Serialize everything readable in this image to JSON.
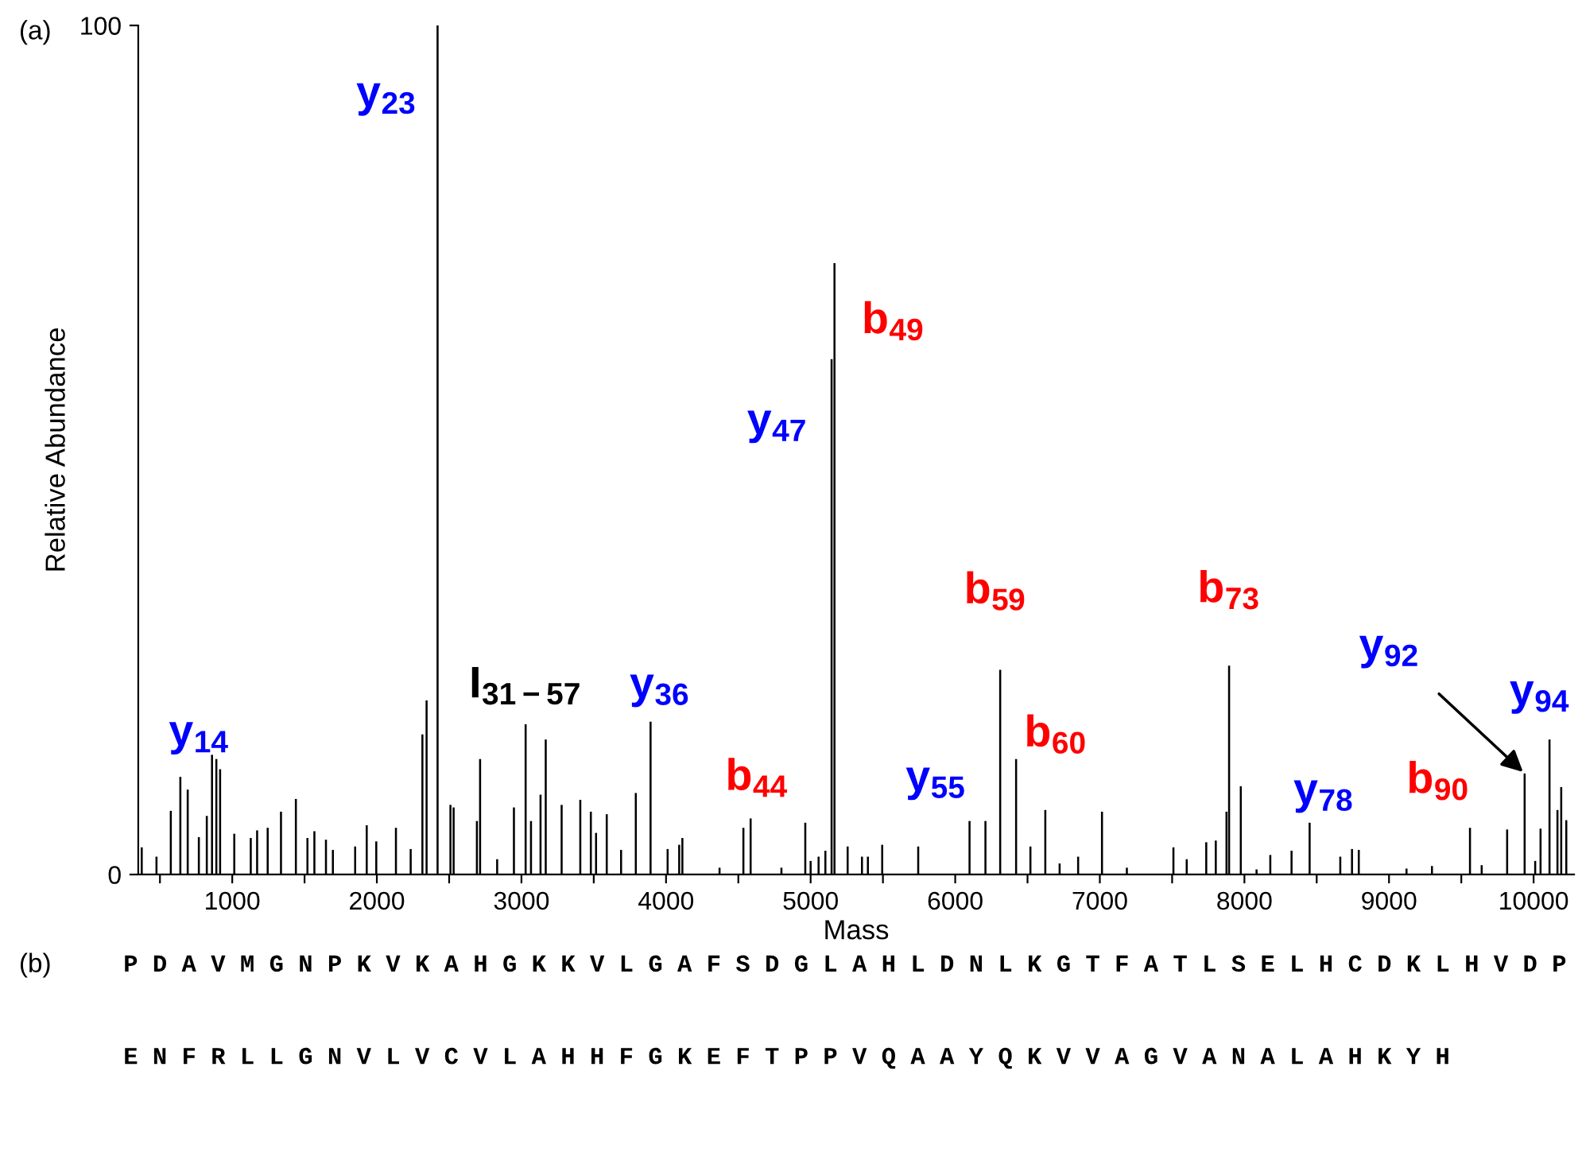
{
  "chart_data": {
    "type": "bar",
    "xlabel": "Mass",
    "ylabel": "Relative Abundance",
    "xlim": [
      350,
      10280
    ],
    "ylim": [
      0,
      100
    ],
    "yticks": [
      0,
      100
    ],
    "xticks": [
      {
        "value": 500,
        "label": null
      },
      1000,
      {
        "value": 1500,
        "label": null
      },
      2000,
      {
        "value": 2500,
        "label": null
      },
      3000,
      {
        "value": 3500,
        "label": null
      },
      4000,
      {
        "value": 4500,
        "label": null
      },
      5000,
      {
        "value": 5500,
        "label": null
      },
      6000,
      {
        "value": 6500,
        "label": null
      },
      7000,
      {
        "value": 7500,
        "label": null
      },
      8000,
      {
        "value": 8500,
        "label": null
      },
      9000,
      {
        "value": 9500,
        "label": null
      },
      10000
    ],
    "grid": false,
    "series": [
      {
        "color": "#000000",
        "x": [
          374,
          476,
          575,
          641,
          692,
          769,
          824,
          860,
          890,
          916,
          1014,
          1128,
          1172,
          1245,
          1337,
          1440,
          1520,
          1568,
          1648,
          1696,
          1850,
          1930,
          1996,
          2132,
          2234,
          2315,
          2344,
          2420,
          2509,
          2531,
          2692,
          2714,
          2832,
          2948,
          3029,
          3066,
          3132,
          3168,
          3278,
          3407,
          3480,
          3516,
          3590,
          3689,
          3791,
          3893,
          4011,
          4091,
          4113,
          4370,
          4535,
          4585,
          4798,
          4963,
          5000,
          5055,
          5102,
          5145,
          5165,
          5256,
          5355,
          5396,
          5495,
          5744,
          6099,
          6209,
          6311,
          6421,
          6520,
          6623,
          6722,
          6850,
          7015,
          7187,
          7509,
          7601,
          7736,
          7802,
          7876,
          7894,
          7975,
          8084,
          8179,
          8326,
          8451,
          8663,
          8744,
          8791,
          9121,
          9297,
          9560,
          9641,
          9817,
          9938,
          10011,
          10048,
          10110,
          10165,
          10191,
          10226
        ],
        "values": [
          3.2,
          2.1,
          7.5,
          11.5,
          10,
          4.4,
          6.9,
          14.1,
          13.6,
          12.4,
          4.8,
          4.3,
          5.2,
          5.5,
          7.4,
          8.9,
          4.3,
          5.1,
          4.1,
          2.9,
          3.3,
          5.8,
          3.9,
          5.5,
          3.0,
          16.5,
          20.5,
          100,
          8.2,
          7.9,
          6.3,
          13.6,
          1.8,
          7.9,
          17.7,
          6.3,
          9.4,
          15.9,
          8.2,
          8.8,
          7.4,
          4.9,
          7.1,
          2.9,
          9.6,
          18.0,
          3.0,
          3.5,
          4.3,
          0.8,
          5.5,
          6.6,
          0.8,
          6.1,
          1.6,
          2.1,
          2.8,
          60.7,
          72.0,
          3.3,
          2.1,
          2.1,
          3.5,
          3.3,
          6.3,
          6.3,
          24.1,
          13.6,
          3.3,
          7.6,
          1.3,
          2.1,
          7.4,
          0.8,
          3.2,
          1.8,
          3.8,
          4.0,
          7.4,
          24.6,
          10.4,
          0.6,
          2.3,
          2.8,
          6.1,
          2.1,
          3.0,
          2.9,
          0.7,
          1.0,
          5.5,
          1.1,
          5.3,
          11.9,
          1.6,
          5.4,
          15.9,
          7.6,
          10.3,
          6.4
        ]
      }
    ],
    "annotations": [
      {
        "text": "y$_{14}$",
        "x": 860,
        "y": 14.1
      },
      {
        "text": "y$_{23}$",
        "x": 2420,
        "y": 100
      },
      {
        "text": "I$_{31−57}$",
        "x": 3029,
        "y": 17.7
      },
      {
        "text": "y$_{36}$",
        "x": 3893,
        "y": 18.0
      },
      {
        "text": "b$_{44}$",
        "x": 4585,
        "y": 6.6
      },
      {
        "text": "y$_{47}$",
        "x": 5145,
        "y": 60.7
      },
      {
        "text": "b$_{49}$",
        "x": 5165,
        "y": 72.0
      },
      {
        "text": "y$_{55}$",
        "x": 6099,
        "y": 6.3
      },
      {
        "text": "b$_{59}$",
        "x": 6311,
        "y": 24.1
      },
      {
        "text": "b$_{60}$",
        "x": 6421,
        "y": 13.6
      },
      {
        "text": "b$_{73}$",
        "x": 7894,
        "y": 24.6
      },
      {
        "text": "y$_{78}$",
        "x": 8451,
        "y": 6.1
      },
      {
        "text": "b$_{90}$",
        "x": 9560,
        "y": 5.5
      },
      {
        "text": "y$_{92}$",
        "x": 9938,
        "y": 11.9
      },
      {
        "text": "y$_{94}$",
        "x": 10110,
        "y": 15.9
      },
      "(a)",
      "(b)",
      "P D A V M G N P K V K A H G K K V L G A F S D G L A H L D N L K G T F A T L S E L H C D K L H V D P",
      "E N F R L L G N V L V C V L A H H F G K E F T P P V Q A A Y Q K V V A G V A N A L A H K Y H"
    ]
  }
}
